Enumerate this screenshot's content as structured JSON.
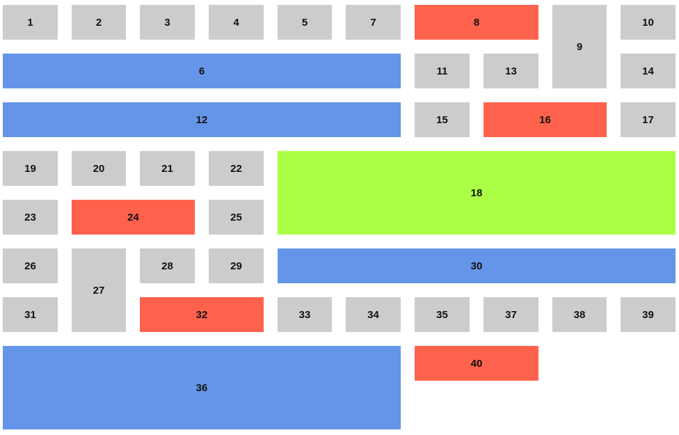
{
  "colors": {
    "gray": "#cccccc",
    "red": "#ff624c",
    "blue": "#6595e8",
    "green": "#abff45"
  },
  "tiles": {
    "t1": {
      "label": "1",
      "color": "gray"
    },
    "t2": {
      "label": "2",
      "color": "gray"
    },
    "t3": {
      "label": "3",
      "color": "gray"
    },
    "t4": {
      "label": "4",
      "color": "gray"
    },
    "t5": {
      "label": "5",
      "color": "gray"
    },
    "t6": {
      "label": "6",
      "color": "blue"
    },
    "t7": {
      "label": "7",
      "color": "gray"
    },
    "t8": {
      "label": "8",
      "color": "red"
    },
    "t9": {
      "label": "9",
      "color": "gray"
    },
    "t10": {
      "label": "10",
      "color": "gray"
    },
    "t11": {
      "label": "11",
      "color": "gray"
    },
    "t12": {
      "label": "12",
      "color": "blue"
    },
    "t13": {
      "label": "13",
      "color": "gray"
    },
    "t14": {
      "label": "14",
      "color": "gray"
    },
    "t15": {
      "label": "15",
      "color": "gray"
    },
    "t16": {
      "label": "16",
      "color": "red"
    },
    "t17": {
      "label": "17",
      "color": "gray"
    },
    "t18": {
      "label": "18",
      "color": "green"
    },
    "t19": {
      "label": "19",
      "color": "gray"
    },
    "t20": {
      "label": "20",
      "color": "gray"
    },
    "t21": {
      "label": "21",
      "color": "gray"
    },
    "t22": {
      "label": "22",
      "color": "gray"
    },
    "t23": {
      "label": "23",
      "color": "gray"
    },
    "t24": {
      "label": "24",
      "color": "red"
    },
    "t25": {
      "label": "25",
      "color": "gray"
    },
    "t26": {
      "label": "26",
      "color": "gray"
    },
    "t27": {
      "label": "27",
      "color": "gray"
    },
    "t28": {
      "label": "28",
      "color": "gray"
    },
    "t29": {
      "label": "29",
      "color": "gray"
    },
    "t30": {
      "label": "30",
      "color": "blue"
    },
    "t31": {
      "label": "31",
      "color": "gray"
    },
    "t32": {
      "label": "32",
      "color": "red"
    },
    "t33": {
      "label": "33",
      "color": "gray"
    },
    "t34": {
      "label": "34",
      "color": "gray"
    },
    "t35": {
      "label": "35",
      "color": "gray"
    },
    "t36": {
      "label": "36",
      "color": "blue"
    },
    "t37": {
      "label": "37",
      "color": "gray"
    },
    "t38": {
      "label": "38",
      "color": "gray"
    },
    "t39": {
      "label": "39",
      "color": "gray"
    },
    "t40": {
      "label": "40",
      "color": "red"
    }
  }
}
